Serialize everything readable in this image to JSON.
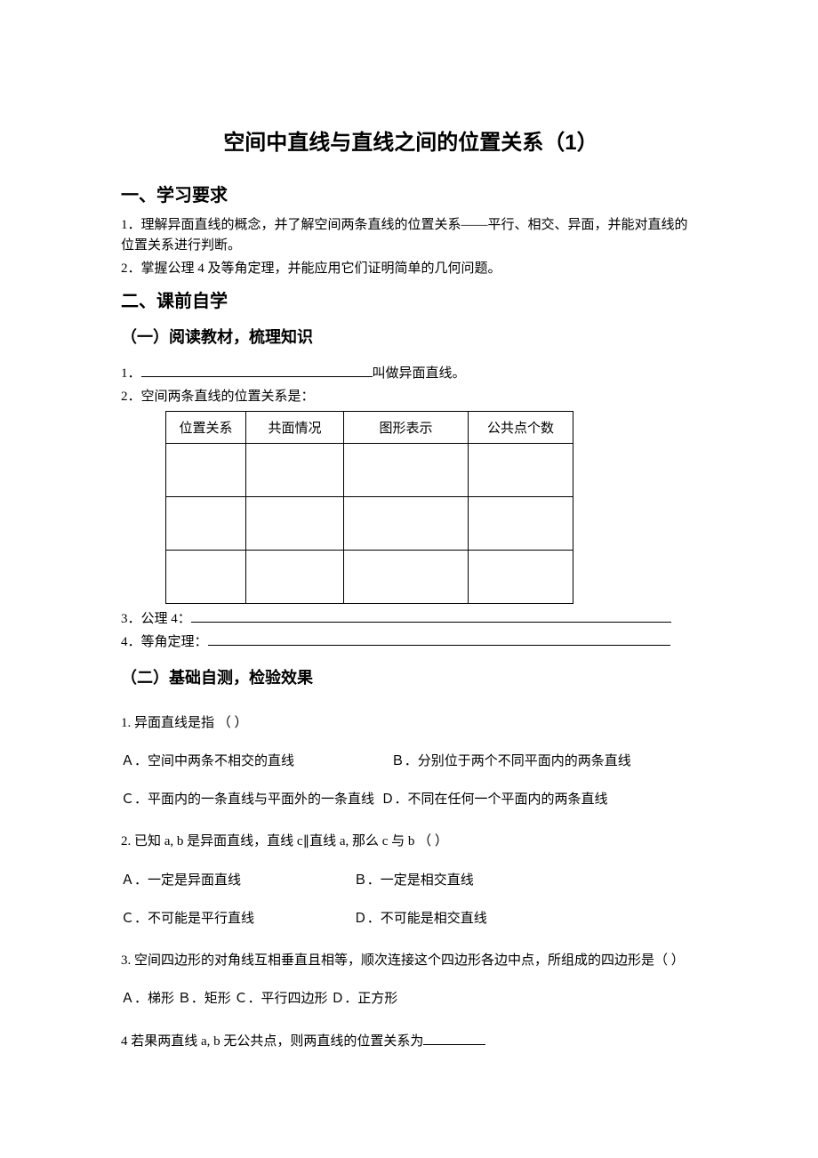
{
  "title": "空间中直线与直线之间的位置关系（1）",
  "sections": {
    "s1": {
      "heading": "一、学习要求",
      "items": {
        "i1": "1．理解异面直线的概念，并了解空间两条直线的位置关系——平行、相交、异面，并能对直线的位置关系进行判断。",
        "i2": "2．掌握公理 4 及等角定理，并能应用它们证明简单的几何问题。"
      }
    },
    "s2": {
      "heading": "二、课前自学",
      "sub1": {
        "heading": "（一）阅读教材，梳理知识",
        "line1_prefix": "1．",
        "line1_suffix": "叫做异面直线。",
        "line2": "2．空间两条直线的位置关系是：",
        "table": {
          "h1": "位置关系",
          "h2": "共面情况",
          "h3": "图形表示",
          "h4": "公共点个数"
        },
        "line3_prefix": "3．公理 4：",
        "line4_prefix": "4．等角定理："
      },
      "sub2": {
        "heading": "（二）基础自测，检验效果",
        "q1": {
          "stem": "1. 异面直线是指 （  ）",
          "a": "Ａ．空间中两条不相交的直线",
          "b": "Ｂ．分别位于两个不同平面内的两条直线",
          "c": "Ｃ．平面内的一条直线与平面外的一条直线",
          "d": "Ｄ．不同在任何一个平面内的两条直线"
        },
        "q2": {
          "stem": " 2. 已知 a, b 是异面直线，直线 c∥直线 a, 那么 c 与 b （  ）",
          "a": "Ａ．一定是异面直线",
          "b": "Ｂ．一定是相交直线",
          "c": "Ｃ．不可能是平行直线",
          "d": "Ｄ．不可能是相交直线"
        },
        "q3": {
          "stem": "3. 空间四边形的对角线互相垂直且相等，顺次连接这个四边形各边中点，所组成的四边形是（  ）",
          "opts": "Ａ．梯形  Ｂ．矩形  Ｃ．平行四边形  Ｄ．正方形"
        },
        "q4": {
          "prefix": "4 若果两直线 a, b 无公共点，则两直线的位置关系为"
        }
      }
    }
  }
}
